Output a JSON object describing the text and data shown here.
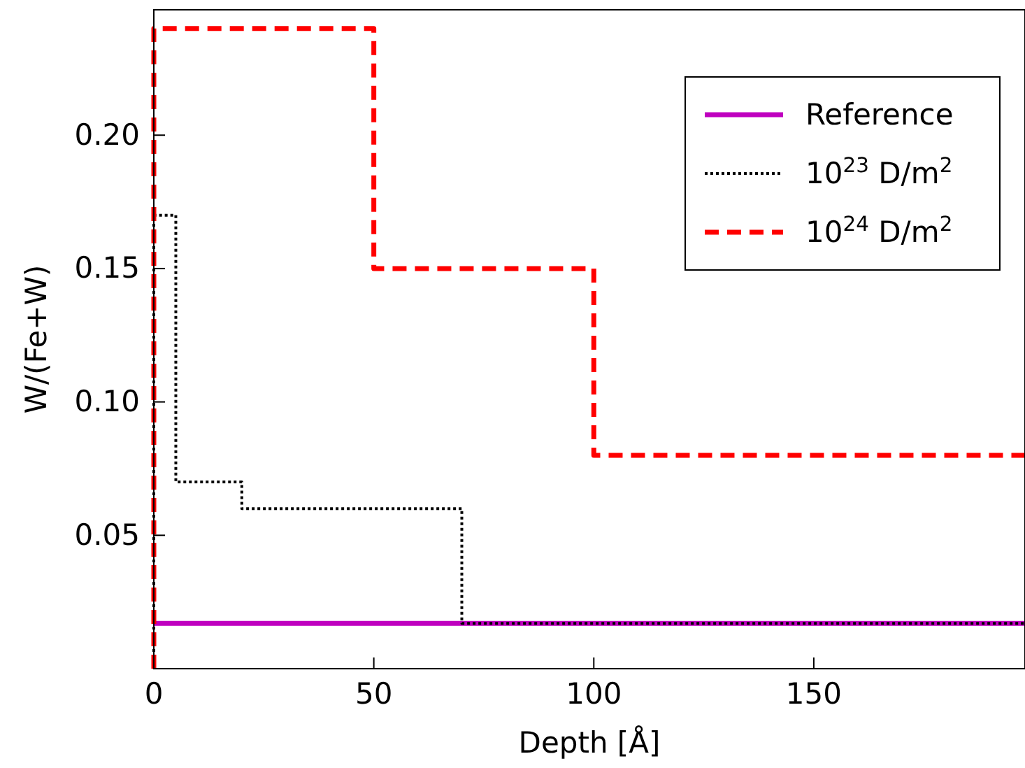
{
  "chart_data": {
    "type": "step",
    "xlabel": "Depth [Å]",
    "ylabel": "W/(Fe+W)",
    "xlim": [
      0,
      198
    ],
    "xticks": [
      0,
      50,
      100,
      150
    ],
    "ylim": [
      0,
      0.247
    ],
    "yticks": [
      {
        "value": 0.05,
        "label": "0.05"
      },
      {
        "value": 0.1,
        "label": "0.10"
      },
      {
        "value": 0.15,
        "label": "0.15"
      },
      {
        "value": 0.2,
        "label": "0.20"
      }
    ],
    "grid": false,
    "legend": "top right",
    "series": [
      {
        "name": "Reference",
        "color": "#bf00bf",
        "line_style": "solid",
        "x": [
          0,
          198
        ],
        "values": [
          0.017,
          0.017
        ]
      },
      {
        "name": "10$^{23}$ D/m$^{2}$",
        "color": "#000000",
        "line_style": "dotted",
        "x": [
          0,
          0,
          5,
          20,
          70,
          198
        ],
        "values": [
          0,
          0.17,
          0.07,
          0.06,
          0.017,
          0.017
        ]
      },
      {
        "name": "10$^{24}$ D/m$^{2}$",
        "color": "#ff0000",
        "line_style": "dashed",
        "x": [
          0,
          0,
          50,
          100,
          198
        ],
        "values": [
          0,
          0.24,
          0.15,
          0.08,
          0.08
        ]
      }
    ]
  }
}
